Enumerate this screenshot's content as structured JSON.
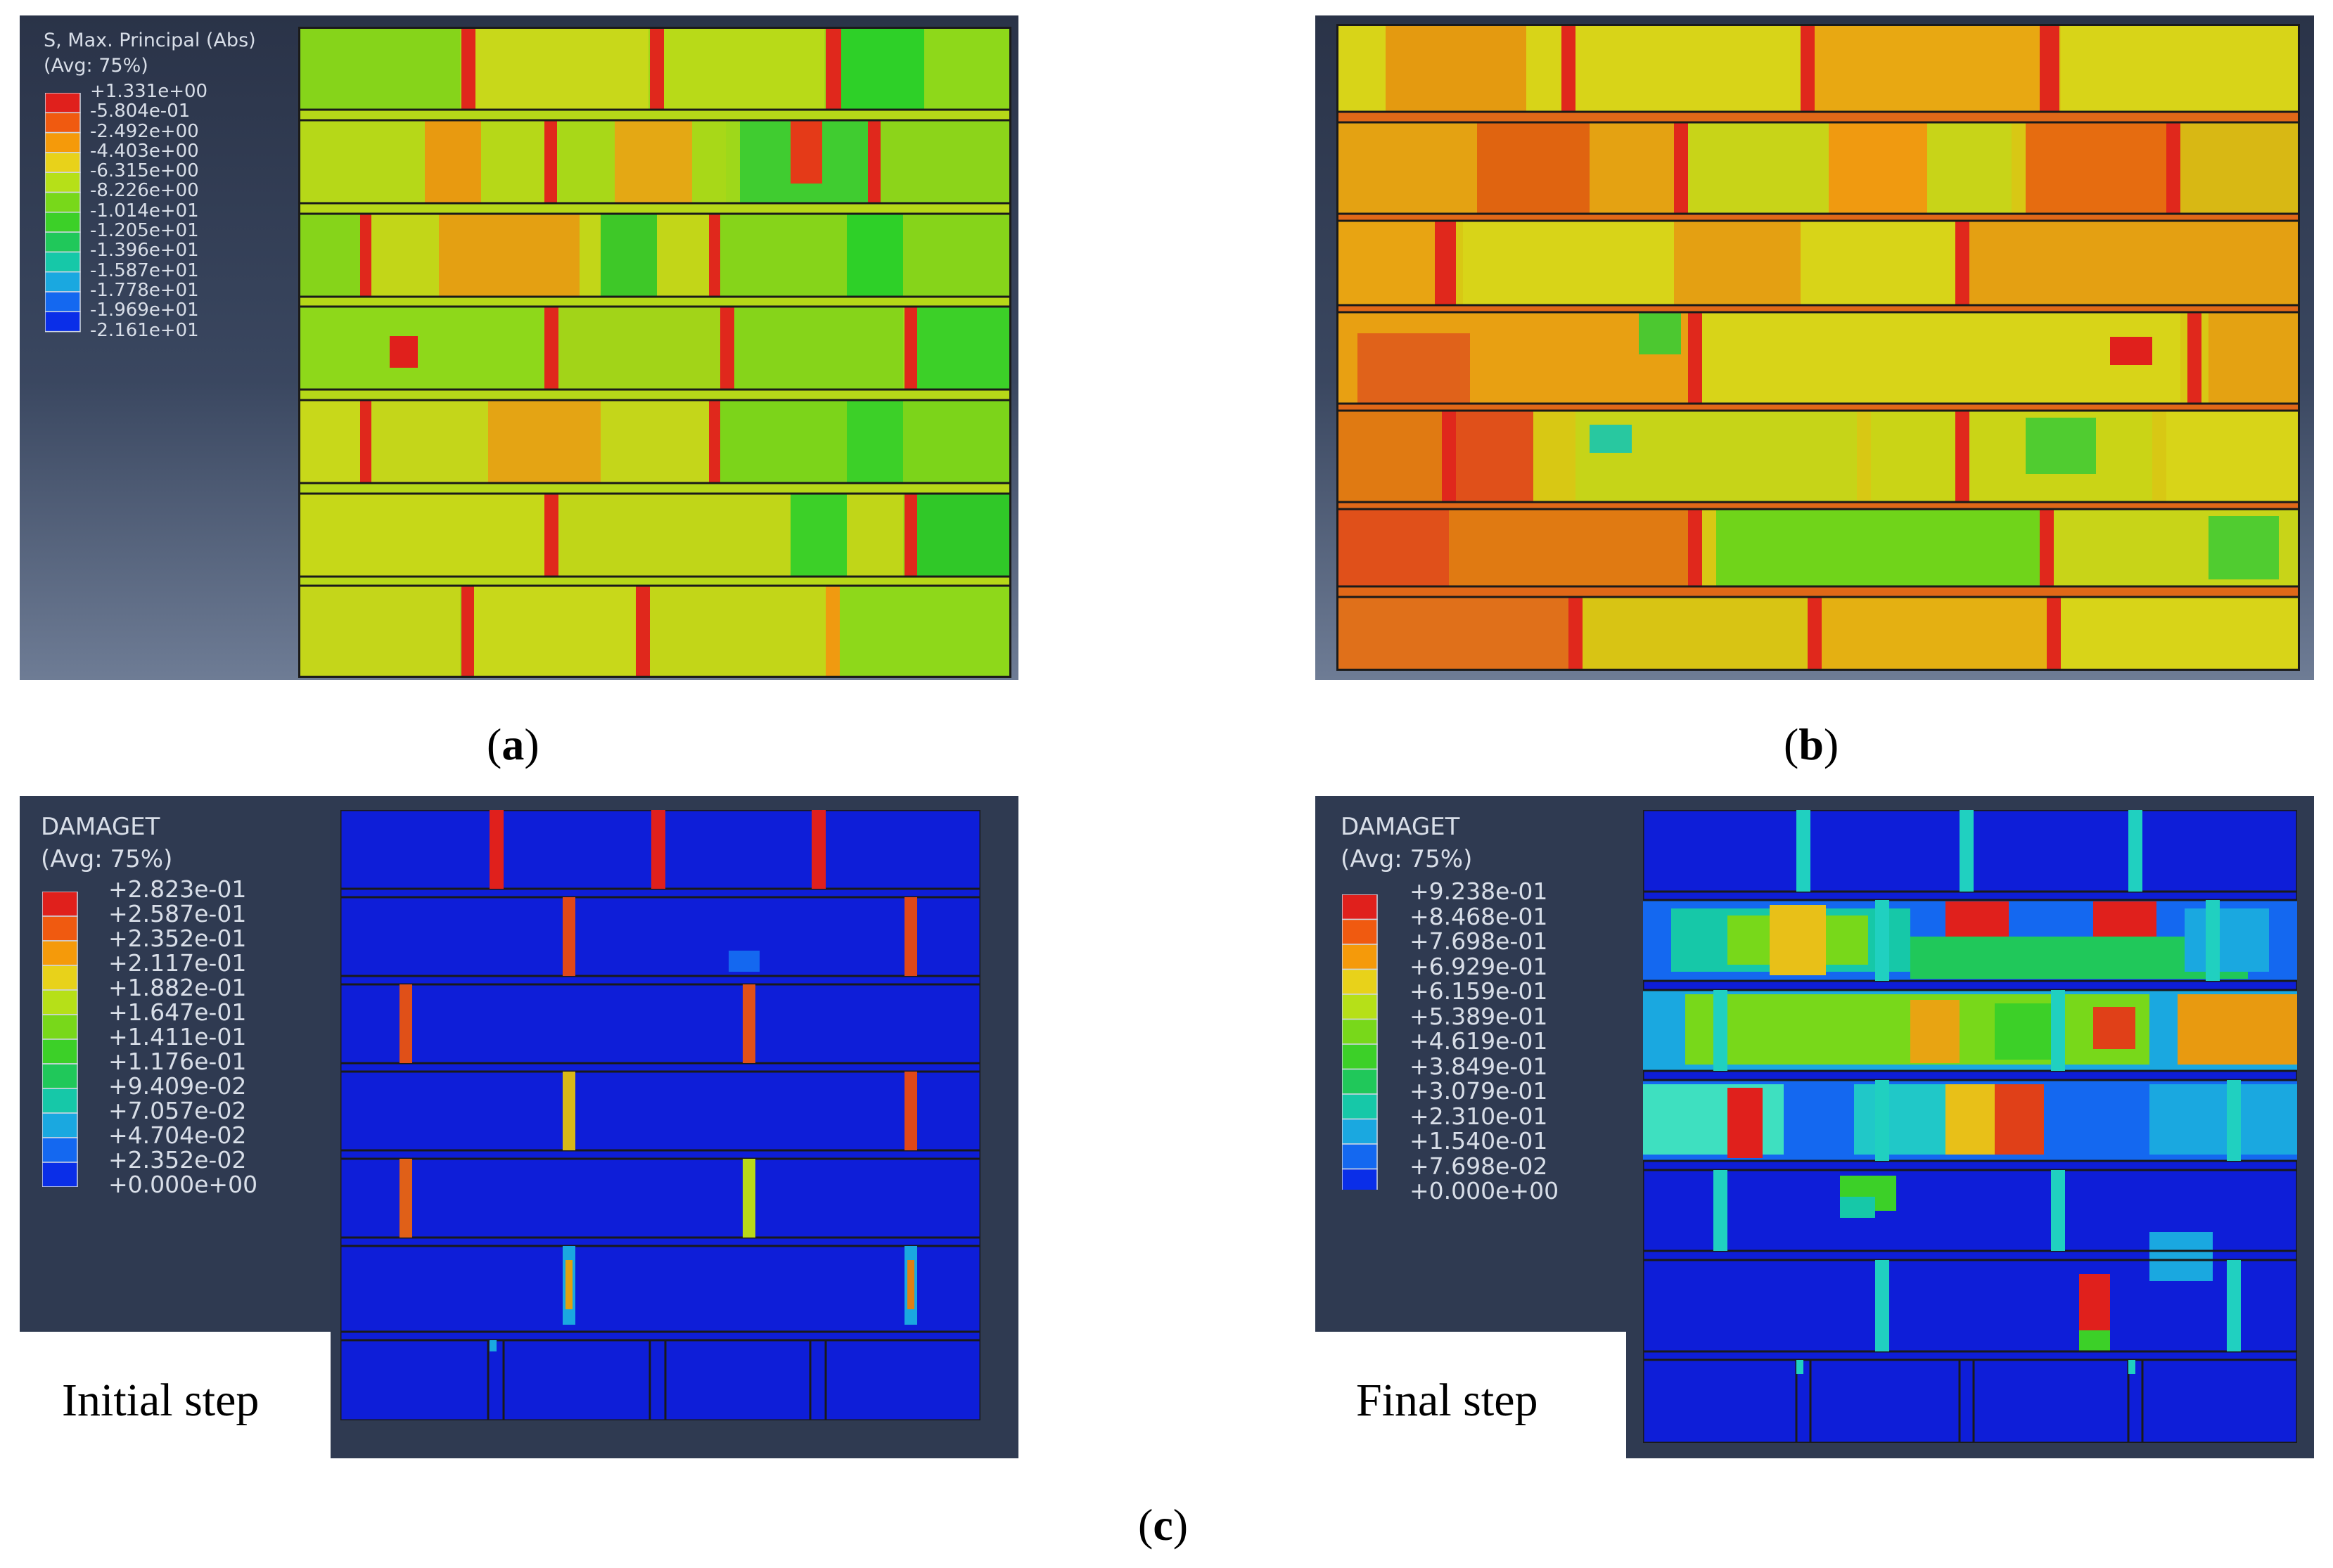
{
  "panel_a": {
    "legend": {
      "title_line1": "S, Max. Principal (Abs)",
      "title_line2": "(Avg: 75%)",
      "values": [
        "+1.331e+00",
        "-5.804e-01",
        "-2.492e+00",
        "-4.403e+00",
        "-6.315e+00",
        "-8.226e+00",
        "-1.014e+01",
        "-1.205e+01",
        "-1.396e+01",
        "-1.587e+01",
        "-1.778e+01",
        "-1.969e+01",
        "-2.161e+01"
      ],
      "colors": [
        "#e0201c",
        "#f05a10",
        "#f59a0a",
        "#e8d21a",
        "#b6e018",
        "#78d81a",
        "#3cd028",
        "#20c85a",
        "#16c8a8",
        "#1aa8e0",
        "#1468f0",
        "#0a2ee8"
      ]
    },
    "caption": "a"
  },
  "panel_b": {
    "caption": "b"
  },
  "panel_c_initial": {
    "legend": {
      "title_line1": "DAMAGET",
      "title_line2": "(Avg: 75%)",
      "values": [
        "+2.823e-01",
        "+2.587e-01",
        "+2.352e-01",
        "+2.117e-01",
        "+1.882e-01",
        "+1.647e-01",
        "+1.411e-01",
        "+1.176e-01",
        "+9.409e-02",
        "+7.057e-02",
        "+4.704e-02",
        "+2.352e-02",
        "+0.000e+00"
      ],
      "colors": [
        "#e0201c",
        "#f05a10",
        "#f59a0a",
        "#e8d21a",
        "#b6e018",
        "#78d81a",
        "#3cd028",
        "#20c85a",
        "#16c8a8",
        "#1aa8e0",
        "#1468f0",
        "#0a2ee8"
      ]
    },
    "step_label": "Initial step"
  },
  "panel_c_final": {
    "legend": {
      "title_line1": "DAMAGET",
      "title_line2": "(Avg: 75%)",
      "values": [
        "+9.238e-01",
        "+8.468e-01",
        "+7.698e-01",
        "+6.929e-01",
        "+6.159e-01",
        "+5.389e-01",
        "+4.619e-01",
        "+3.849e-01",
        "+3.079e-01",
        "+2.310e-01",
        "+1.540e-01",
        "+7.698e-02",
        "+0.000e+00"
      ],
      "colors": [
        "#e0201c",
        "#f05a10",
        "#f59a0a",
        "#e8d21a",
        "#b6e018",
        "#78d81a",
        "#3cd028",
        "#20c85a",
        "#16c8a8",
        "#1aa8e0",
        "#1468f0",
        "#0a2ee8"
      ]
    },
    "step_label": "Final step"
  },
  "caption_c": "c"
}
